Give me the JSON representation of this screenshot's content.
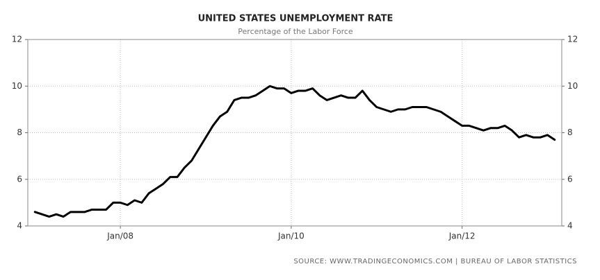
{
  "chart_data": {
    "type": "line",
    "title": "UNITED STATES UNEMPLOYMENT RATE",
    "subtitle": "Percentage of the Labor Force",
    "source": "SOURCE: WWW.TRADINGECONOMICS.COM | BUREAU OF LABOR STATISTICS",
    "color": "#000000",
    "grid": true,
    "x": [
      "2007-01",
      "2007-02",
      "2007-03",
      "2007-04",
      "2007-05",
      "2007-06",
      "2007-07",
      "2007-08",
      "2007-09",
      "2007-10",
      "2007-11",
      "2007-12",
      "2008-01",
      "2008-02",
      "2008-03",
      "2008-04",
      "2008-05",
      "2008-06",
      "2008-07",
      "2008-08",
      "2008-09",
      "2008-10",
      "2008-11",
      "2008-12",
      "2009-01",
      "2009-02",
      "2009-03",
      "2009-04",
      "2009-05",
      "2009-06",
      "2009-07",
      "2009-08",
      "2009-09",
      "2009-10",
      "2009-11",
      "2009-12",
      "2010-01",
      "2010-02",
      "2010-03",
      "2010-04",
      "2010-05",
      "2010-06",
      "2010-07",
      "2010-08",
      "2010-09",
      "2010-10",
      "2010-11",
      "2010-12",
      "2011-01",
      "2011-02",
      "2011-03",
      "2011-04",
      "2011-05",
      "2011-06",
      "2011-07",
      "2011-08",
      "2011-09",
      "2011-10",
      "2011-11",
      "2011-12",
      "2012-01",
      "2012-02",
      "2012-03",
      "2012-04",
      "2012-05",
      "2012-06",
      "2012-07",
      "2012-08",
      "2012-09",
      "2012-10",
      "2012-11",
      "2012-12",
      "2013-01",
      "2013-02"
    ],
    "values": [
      4.6,
      4.5,
      4.4,
      4.5,
      4.4,
      4.6,
      4.6,
      4.6,
      4.7,
      4.7,
      4.7,
      5.0,
      5.0,
      4.9,
      5.1,
      5.0,
      5.4,
      5.6,
      5.8,
      6.1,
      6.1,
      6.5,
      6.8,
      7.3,
      7.8,
      8.3,
      8.7,
      8.9,
      9.4,
      9.5,
      9.5,
      9.6,
      9.8,
      10.0,
      9.9,
      9.9,
      9.7,
      9.8,
      9.8,
      9.9,
      9.6,
      9.4,
      9.5,
      9.6,
      9.5,
      9.5,
      9.8,
      9.4,
      9.1,
      9.0,
      8.9,
      9.0,
      9.0,
      9.1,
      9.1,
      9.1,
      9.0,
      8.9,
      8.7,
      8.5,
      8.3,
      8.3,
      8.2,
      8.1,
      8.2,
      8.2,
      8.3,
      8.1,
      7.8,
      7.9,
      7.8,
      7.8,
      7.9,
      7.7
    ],
    "xlim": [
      "2006-12",
      "2013-03"
    ],
    "xticks": [
      {
        "value": "2008-01",
        "label": "Jan/08"
      },
      {
        "value": "2010-01",
        "label": "Jan/10"
      },
      {
        "value": "2012-01",
        "label": "Jan/12"
      }
    ],
    "ylim": [
      4,
      12
    ],
    "yticks": [
      4,
      6,
      8,
      10,
      12
    ],
    "y2lim": [
      4,
      12
    ],
    "y2ticks": [
      4,
      6,
      8,
      10,
      12
    ]
  }
}
